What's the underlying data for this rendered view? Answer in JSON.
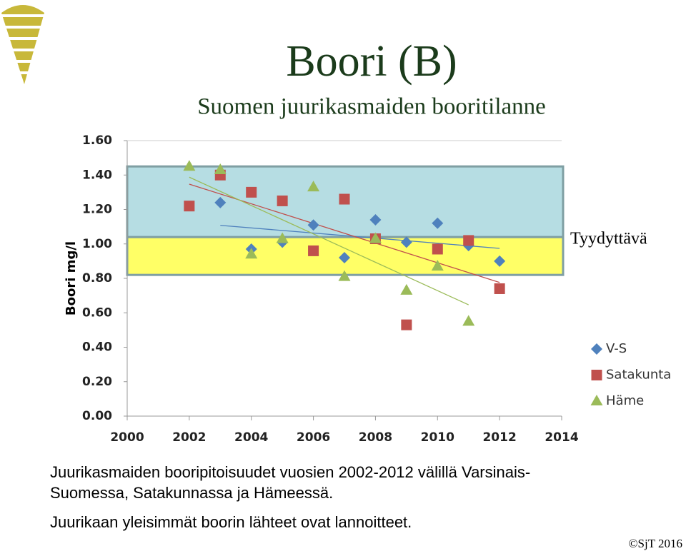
{
  "header": {
    "title": "Boori (B)",
    "subtitle": "Suomen juurikasmaiden booritilanne"
  },
  "chart_data": {
    "type": "scatter",
    "ylabel": "Boori mg/l",
    "xlim": [
      2000,
      2014
    ],
    "xticks": [
      2000,
      2002,
      2004,
      2006,
      2008,
      2010,
      2012,
      2014
    ],
    "ylim": [
      0,
      1.6
    ],
    "yticks": [
      {
        "value": 0,
        "label": "0.00"
      },
      {
        "value": 0.2,
        "label": "0.20"
      },
      {
        "value": 0.4,
        "label": "0.40"
      },
      {
        "value": 0.6,
        "label": "0.60"
      },
      {
        "value": 0.8,
        "label": "0.80"
      },
      {
        "value": 1,
        "label": "1.00"
      },
      {
        "value": 1.2,
        "label": "1.20"
      },
      {
        "value": 1.4,
        "label": "1.40"
      },
      {
        "value": 1.6,
        "label": "1.60"
      }
    ],
    "bands": [
      {
        "range": [
          0.82,
          1.04
        ],
        "color": "#ffff66"
      },
      {
        "range": [
          1.04,
          1.45
        ],
        "color": "#b6dde3"
      }
    ],
    "annotation": "Tyydyttävä",
    "trendlines": true,
    "series": [
      {
        "name": "V-S",
        "color": "#4f81bd",
        "marker": "diamond",
        "x": [
          2003,
          2004,
          2005,
          2006,
          2007,
          2008,
          2009,
          2010,
          2011,
          2012
        ],
        "values": [
          1.24,
          0.97,
          1.01,
          1.11,
          0.92,
          1.14,
          1.01,
          1.12,
          0.99,
          0.9
        ]
      },
      {
        "name": "Satakunta",
        "color": "#c0504d",
        "marker": "square",
        "x": [
          2002,
          2003,
          2004,
          2005,
          2006,
          2007,
          2008,
          2009,
          2010,
          2011,
          2012
        ],
        "values": [
          1.22,
          1.4,
          1.3,
          1.25,
          0.96,
          1.26,
          1.03,
          0.53,
          0.97,
          1.02,
          0.74
        ]
      },
      {
        "name": "Häme",
        "color": "#9bbb59",
        "marker": "triangle",
        "x": [
          2002,
          2003,
          2004,
          2005,
          2006,
          2007,
          2008,
          2009,
          2010,
          2011
        ],
        "values": [
          1.45,
          1.43,
          0.94,
          1.03,
          1.33,
          0.81,
          1.03,
          0.73,
          0.87,
          0.55
        ]
      }
    ]
  },
  "caption": [
    "Juurikasmaiden booripitoisuudet vuosien 2002-2012 välillä Varsinais-",
    "Suomessa, Satakunnassa ja Hämeessä.",
    "Juurikaan yleisimmät boorin lähteet ovat lannoitteet."
  ],
  "footer": "©SjT 2016"
}
